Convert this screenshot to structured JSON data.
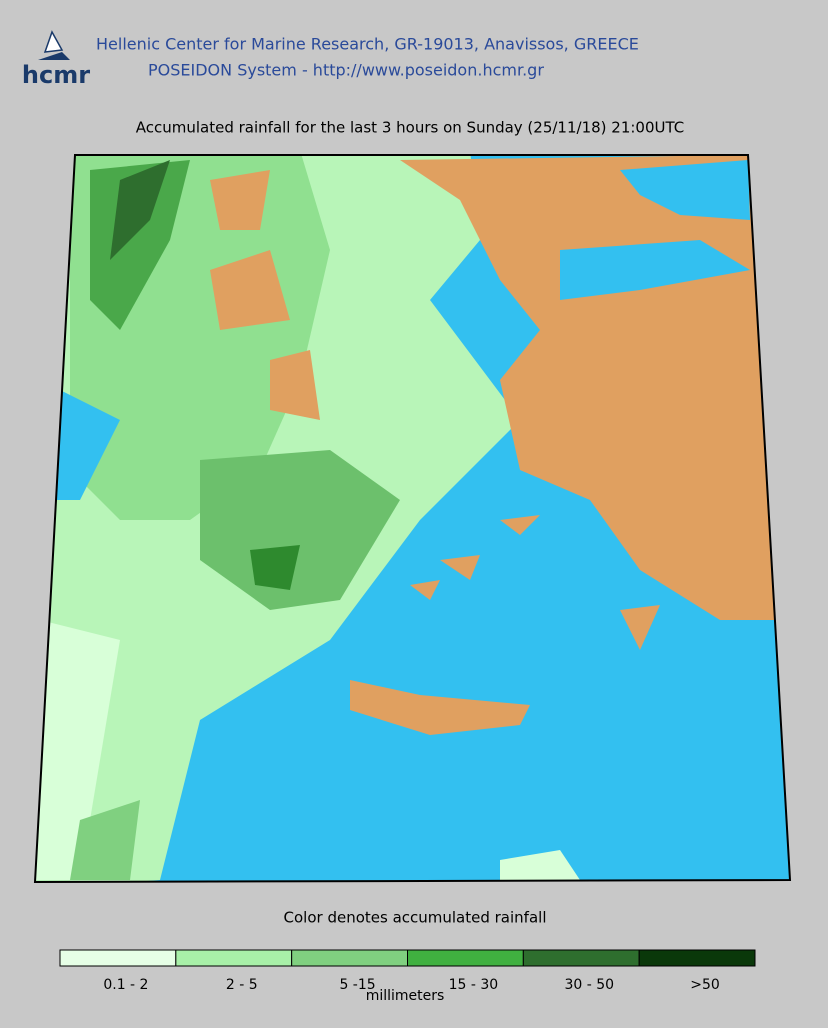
{
  "header": {
    "logo": "hcmr",
    "line1": "Hellenic Center for Marine Research, GR-19013, Anavissos, GREECE",
    "line2": "POSEIDON System - http://www.poseidon.hcmr.gr"
  },
  "title": "Accumulated rainfall for the last 3 hours on Sunday (25/11/18) 21:00UTC",
  "legend": {
    "caption": "Color denotes accumulated rainfall",
    "items": [
      {
        "label": "0.1 - 2",
        "color": "#e6ffe6"
      },
      {
        "label": "2 - 5",
        "color": "#a8f0a8"
      },
      {
        "label": "5 -15",
        "color": "#80d080"
      },
      {
        "label": "15 - 30",
        "color": "#40b040"
      },
      {
        "label": "30 - 50",
        "color": "#2e6e2e"
      },
      {
        "label": ">50",
        "color": "#0a380a"
      }
    ],
    "unit": "millimeters"
  }
}
